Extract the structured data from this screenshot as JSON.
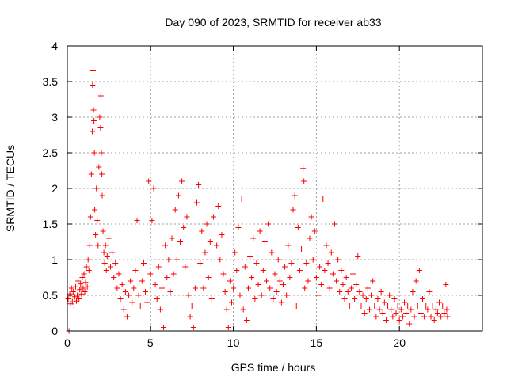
{
  "chart_data": {
    "type": "scatter",
    "title": "Day 090 of 2023, SRMTID for receiver ab33",
    "xlabel": "GPS time / hours",
    "ylabel": "SRMTID / TECUs",
    "xlim": [
      0,
      25
    ],
    "ylim": [
      0,
      4
    ],
    "xticks": [
      0,
      5,
      10,
      15,
      20
    ],
    "yticks": [
      0,
      0.5,
      1,
      1.5,
      2,
      2.5,
      3,
      3.5,
      4
    ],
    "xtick_labels": [
      "0",
      "5",
      "10",
      "15",
      "20"
    ],
    "ytick_labels": [
      "0",
      "0.5",
      "1",
      "1.5",
      "2",
      "2.5",
      "3",
      "3.5",
      "4"
    ],
    "grid": true,
    "marker": "+",
    "color": "#ff0000",
    "series": [
      {
        "name": "SRMTID",
        "points": [
          [
            0.05,
            0.45
          ],
          [
            0.1,
            0.0
          ],
          [
            0.15,
            0.52
          ],
          [
            0.2,
            0.38
          ],
          [
            0.25,
            0.6
          ],
          [
            0.3,
            0.41
          ],
          [
            0.35,
            0.55
          ],
          [
            0.4,
            0.35
          ],
          [
            0.45,
            0.48
          ],
          [
            0.5,
            0.62
          ],
          [
            0.55,
            0.42
          ],
          [
            0.6,
            0.5
          ],
          [
            0.65,
            0.7
          ],
          [
            0.7,
            0.45
          ],
          [
            0.75,
            0.58
          ],
          [
            0.8,
            0.66
          ],
          [
            0.85,
            0.52
          ],
          [
            0.9,
            0.75
          ],
          [
            0.95,
            0.6
          ],
          [
            1.0,
            0.8
          ],
          [
            1.05,
            0.55
          ],
          [
            1.1,
            0.68
          ],
          [
            1.15,
            0.9
          ],
          [
            1.2,
            0.62
          ],
          [
            1.25,
            1.0
          ],
          [
            1.3,
            0.85
          ],
          [
            1.35,
            1.2
          ],
          [
            1.4,
            1.6
          ],
          [
            1.45,
            2.2
          ],
          [
            1.5,
            2.8
          ],
          [
            1.52,
            3.45
          ],
          [
            1.55,
            3.65
          ],
          [
            1.58,
            3.1
          ],
          [
            1.6,
            2.95
          ],
          [
            1.63,
            2.5
          ],
          [
            1.65,
            1.7
          ],
          [
            1.7,
            1.35
          ],
          [
            1.75,
            2.0
          ],
          [
            1.8,
            1.55
          ],
          [
            1.85,
            1.2
          ],
          [
            1.9,
            2.3
          ],
          [
            1.95,
            3.0
          ],
          [
            2.0,
            2.85
          ],
          [
            2.02,
            3.3
          ],
          [
            2.05,
            2.5
          ],
          [
            2.08,
            2.2
          ],
          [
            2.1,
            1.9
          ],
          [
            2.15,
            1.4
          ],
          [
            2.2,
            1.1
          ],
          [
            2.25,
            0.95
          ],
          [
            2.3,
            1.2
          ],
          [
            2.35,
            0.85
          ],
          [
            2.4,
            1.05
          ],
          [
            2.5,
            1.3
          ],
          [
            2.6,
            0.9
          ],
          [
            2.7,
            1.1
          ],
          [
            2.8,
            0.75
          ],
          [
            2.9,
            0.95
          ],
          [
            3.0,
            0.6
          ],
          [
            3.1,
            0.8
          ],
          [
            3.2,
            0.45
          ],
          [
            3.3,
            0.65
          ],
          [
            3.4,
            0.3
          ],
          [
            3.5,
            0.55
          ],
          [
            3.6,
            0.2
          ],
          [
            3.7,
            0.5
          ],
          [
            3.8,
            0.7
          ],
          [
            3.9,
            0.4
          ],
          [
            4.0,
            0.6
          ],
          [
            4.1,
            0.85
          ],
          [
            4.2,
            1.55
          ],
          [
            4.3,
            0.5
          ],
          [
            4.4,
            0.35
          ],
          [
            4.5,
            0.7
          ],
          [
            4.6,
            0.95
          ],
          [
            4.7,
            0.55
          ],
          [
            4.8,
            0.4
          ],
          [
            4.9,
            2.1
          ],
          [
            5.0,
            0.8
          ],
          [
            5.1,
            1.55
          ],
          [
            5.2,
            2.0
          ],
          [
            5.3,
            0.65
          ],
          [
            5.4,
            0.45
          ],
          [
            5.5,
            0.9
          ],
          [
            5.6,
            0.3
          ],
          [
            5.7,
            0.6
          ],
          [
            5.8,
            0.05
          ],
          [
            5.9,
            1.2
          ],
          [
            6.0,
            0.75
          ],
          [
            6.1,
            1.0
          ],
          [
            6.2,
            0.55
          ],
          [
            6.3,
            1.3
          ],
          [
            6.4,
            0.8
          ],
          [
            6.5,
            1.7
          ],
          [
            6.6,
            1.0
          ],
          [
            6.7,
            1.9
          ],
          [
            6.8,
            1.25
          ],
          [
            6.9,
            2.1
          ],
          [
            7.0,
            1.45
          ],
          [
            7.1,
            0.9
          ],
          [
            7.2,
            1.6
          ],
          [
            7.3,
            0.5
          ],
          [
            7.4,
            0.2
          ],
          [
            7.5,
            0.35
          ],
          [
            7.6,
            0.05
          ],
          [
            7.7,
            0.6
          ],
          [
            7.8,
            1.8
          ],
          [
            7.9,
            2.05
          ],
          [
            8.0,
            0.95
          ],
          [
            8.1,
            1.4
          ],
          [
            8.2,
            0.6
          ],
          [
            8.3,
            1.1
          ],
          [
            8.4,
            1.5
          ],
          [
            8.5,
            0.75
          ],
          [
            8.6,
            1.25
          ],
          [
            8.7,
            0.45
          ],
          [
            8.8,
            1.6
          ],
          [
            8.9,
            1.95
          ],
          [
            9.0,
            1.2
          ],
          [
            9.1,
            1.75
          ],
          [
            9.2,
            1.0
          ],
          [
            9.3,
            1.35
          ],
          [
            9.4,
            0.8
          ],
          [
            9.5,
            0.55
          ],
          [
            9.6,
            0.3
          ],
          [
            9.7,
            0.05
          ],
          [
            9.8,
            0.7
          ],
          [
            9.9,
            0.4
          ],
          [
            10.0,
            0.6
          ],
          [
            10.1,
            1.1
          ],
          [
            10.2,
            0.85
          ],
          [
            10.3,
            1.45
          ],
          [
            10.4,
            0.5
          ],
          [
            10.5,
            1.85
          ],
          [
            10.6,
            0.3
          ],
          [
            10.7,
            0.9
          ],
          [
            10.8,
            0.15
          ],
          [
            10.9,
            0.6
          ],
          [
            11.0,
            1.05
          ],
          [
            11.1,
            0.75
          ],
          [
            11.2,
            1.3
          ],
          [
            11.3,
            0.45
          ],
          [
            11.4,
            0.95
          ],
          [
            11.5,
            0.65
          ],
          [
            11.6,
            1.4
          ],
          [
            11.7,
            0.5
          ],
          [
            11.8,
            0.85
          ],
          [
            11.9,
            1.25
          ],
          [
            12.0,
            0.7
          ],
          [
            12.1,
            1.5
          ],
          [
            12.2,
            0.6
          ],
          [
            12.3,
            1.1
          ],
          [
            12.4,
            0.45
          ],
          [
            12.5,
            0.8
          ],
          [
            12.6,
            0.55
          ],
          [
            12.7,
            1.0
          ],
          [
            12.8,
            0.7
          ],
          [
            12.9,
            0.4
          ],
          [
            13.0,
            0.65
          ],
          [
            13.1,
            0.9
          ],
          [
            13.2,
            0.5
          ],
          [
            13.3,
            1.2
          ],
          [
            13.4,
            0.75
          ],
          [
            13.5,
            0.95
          ],
          [
            13.6,
            1.7
          ],
          [
            13.7,
            1.9
          ],
          [
            13.8,
            0.35
          ],
          [
            13.9,
            1.45
          ],
          [
            14.0,
            0.85
          ],
          [
            14.1,
            1.15
          ],
          [
            14.2,
            2.28
          ],
          [
            14.25,
            2.1
          ],
          [
            14.3,
            0.6
          ],
          [
            14.4,
            0.95
          ],
          [
            14.5,
            0.7
          ],
          [
            14.6,
            1.3
          ],
          [
            14.7,
            1.6
          ],
          [
            14.8,
            1.0
          ],
          [
            14.9,
            1.4
          ],
          [
            15.0,
            0.75
          ],
          [
            15.1,
            0.5
          ],
          [
            15.2,
            0.9
          ],
          [
            15.3,
            0.65
          ],
          [
            15.4,
            1.85
          ],
          [
            15.5,
            0.85
          ],
          [
            15.6,
            1.2
          ],
          [
            15.7,
            0.95
          ],
          [
            15.8,
            0.6
          ],
          [
            15.9,
            1.1
          ],
          [
            16.0,
            0.8
          ],
          [
            16.1,
            1.5
          ],
          [
            16.2,
            0.7
          ],
          [
            16.3,
            1.0
          ],
          [
            16.4,
            0.55
          ],
          [
            16.5,
            0.85
          ],
          [
            16.6,
            0.65
          ],
          [
            16.7,
            0.45
          ],
          [
            16.8,
            0.75
          ],
          [
            16.9,
            0.55
          ],
          [
            17.0,
            0.35
          ],
          [
            17.1,
            0.6
          ],
          [
            17.2,
            0.8
          ],
          [
            17.3,
            0.45
          ],
          [
            17.4,
            0.65
          ],
          [
            17.5,
            1.05
          ],
          [
            17.6,
            0.55
          ],
          [
            17.7,
            0.35
          ],
          [
            17.8,
            0.5
          ],
          [
            17.9,
            0.25
          ],
          [
            18.0,
            0.45
          ],
          [
            18.1,
            0.6
          ],
          [
            18.2,
            0.3
          ],
          [
            18.3,
            0.5
          ],
          [
            18.4,
            0.7
          ],
          [
            18.5,
            0.35
          ],
          [
            18.6,
            0.2
          ],
          [
            18.7,
            0.45
          ],
          [
            18.8,
            0.3
          ],
          [
            18.9,
            0.55
          ],
          [
            19.0,
            0.25
          ],
          [
            19.1,
            0.4
          ],
          [
            19.2,
            0.15
          ],
          [
            19.3,
            0.35
          ],
          [
            19.4,
            0.5
          ],
          [
            19.5,
            0.3
          ],
          [
            19.6,
            0.2
          ],
          [
            19.7,
            0.45
          ],
          [
            19.8,
            0.25
          ],
          [
            19.9,
            0.35
          ],
          [
            20.0,
            0.15
          ],
          [
            20.1,
            0.3
          ],
          [
            20.2,
            0.2
          ],
          [
            20.3,
            0.4
          ],
          [
            20.4,
            0.25
          ],
          [
            20.5,
            0.35
          ],
          [
            20.6,
            0.1
          ],
          [
            20.7,
            0.3
          ],
          [
            20.8,
            0.55
          ],
          [
            20.9,
            0.2
          ],
          [
            21.0,
            0.7
          ],
          [
            21.1,
            0.35
          ],
          [
            21.2,
            0.85
          ],
          [
            21.3,
            0.25
          ],
          [
            21.4,
            0.45
          ],
          [
            21.5,
            0.2
          ],
          [
            21.6,
            0.35
          ],
          [
            21.7,
            0.3
          ],
          [
            21.8,
            0.55
          ],
          [
            21.9,
            0.2
          ],
          [
            22.0,
            0.35
          ],
          [
            22.1,
            0.15
          ],
          [
            22.2,
            0.3
          ],
          [
            22.3,
            0.25
          ],
          [
            22.4,
            0.4
          ],
          [
            22.5,
            0.2
          ],
          [
            22.6,
            0.35
          ],
          [
            22.7,
            0.25
          ],
          [
            22.8,
            0.65
          ],
          [
            22.85,
            0.3
          ],
          [
            22.9,
            0.2
          ]
        ]
      }
    ]
  }
}
